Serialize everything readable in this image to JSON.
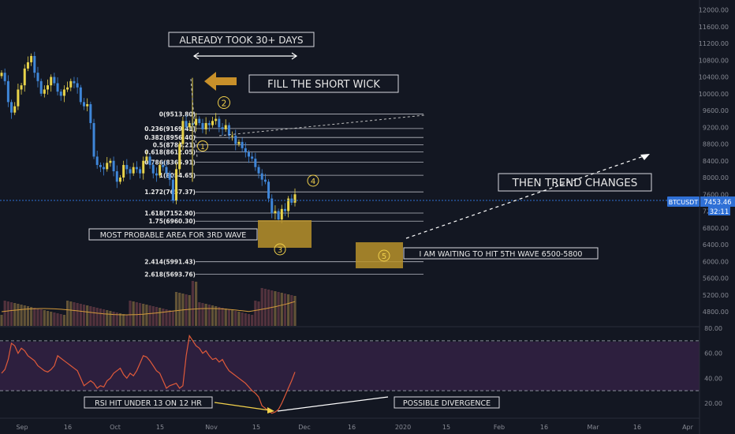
{
  "chart_data": {
    "type": "candlestick",
    "symbol": "BTCUSDT",
    "last_price": "7453.46",
    "countdown": "32:11",
    "x_ticks": [
      "Sep",
      "16",
      "Oct",
      "15",
      "Nov",
      "15",
      "Dec",
      "16",
      "2020",
      "15",
      "Feb",
      "16",
      "Mar",
      "16",
      "Apr"
    ],
    "price_axis": {
      "range": [
        4600,
        12200
      ],
      "ticks": [
        "12000.00",
        "11600.00",
        "11200.00",
        "10800.00",
        "10400.00",
        "10000.00",
        "9600.00",
        "9200.00",
        "8800.00",
        "8400.00",
        "8000.00",
        "7600.00",
        "7200.00",
        "6800.00",
        "6400.00",
        "6000.00",
        "5600.00",
        "5200.00",
        "4800.00"
      ]
    },
    "rsi_axis": {
      "range": [
        10,
        80
      ],
      "ticks": [
        "80.00",
        "60.00",
        "40.00",
        "20.00"
      ],
      "upper_band": 70,
      "lower_band": 30
    },
    "fib_levels": [
      {
        "label": "0(9513.80)",
        "price": 9513.8
      },
      {
        "label": "0.236(9169.41)",
        "price": 9169.41
      },
      {
        "label": "0.382(8956.40)",
        "price": 8956.4
      },
      {
        "label": "0.5(8784.21)",
        "price": 8784.21
      },
      {
        "label": "0.618(8612.05)",
        "price": 8612.05
      },
      {
        "label": "0.786(8366.91)",
        "price": 8366.91
      },
      {
        "label": "1(8054.65)",
        "price": 8054.65
      },
      {
        "label": "1.272(7657.37)",
        "price": 7657.37
      },
      {
        "label": "1.618(7152.90)",
        "price": 7152.9
      },
      {
        "label": "1.75(6960.30)",
        "price": 6960.3
      },
      {
        "label": "2.414(5991.43)",
        "price": 5991.43
      },
      {
        "label": "2.618(5693.76)",
        "price": 5693.76
      }
    ],
    "close_series": [
      10500,
      10300,
      9800,
      9550,
      9700,
      10100,
      10200,
      10600,
      10750,
      10900,
      10500,
      10300,
      10000,
      10100,
      10200,
      10400,
      10250,
      10050,
      9950,
      10100,
      10150,
      10300,
      10250,
      10150,
      9800,
      9700,
      9750,
      9300,
      8500,
      8300,
      8250,
      8200,
      8350,
      8400,
      8150,
      7900,
      8000,
      8300,
      8200,
      8100,
      8250,
      8200,
      8100,
      8400,
      8500,
      8300,
      8100,
      8050,
      8300,
      8250,
      8100,
      7950,
      7450,
      8200,
      8800,
      9350,
      9200,
      9300,
      9250,
      9400,
      9300,
      9150,
      9300,
      9250,
      9350,
      9400,
      9200,
      9150,
      9250,
      9000,
      9000,
      8800,
      8850,
      8700,
      8600,
      8500,
      8450,
      8250,
      8100,
      7950,
      7900,
      7500,
      7150,
      7200,
      7000,
      7250,
      7200,
      7500,
      7400,
      7600
    ],
    "rsi_series": [
      44,
      47,
      55,
      68,
      66,
      60,
      64,
      62,
      58,
      56,
      54,
      50,
      48,
      46,
      45,
      47,
      50,
      58,
      56,
      54,
      52,
      50,
      48,
      46,
      40,
      34,
      36,
      38,
      36,
      32,
      34,
      33,
      38,
      40,
      44,
      46,
      48,
      43,
      40,
      44,
      42,
      46,
      52,
      58,
      57,
      54,
      50,
      46,
      44,
      38,
      32,
      34,
      35,
      36,
      32,
      34,
      58,
      74,
      70,
      66,
      64,
      60,
      62,
      58,
      55,
      56,
      53,
      55,
      50,
      46,
      44,
      42,
      40,
      38,
      36,
      33,
      30,
      28,
      25,
      18,
      16,
      14,
      12,
      13,
      15,
      20,
      26,
      32,
      38,
      45
    ]
  },
  "annotations": {
    "already_took": "ALREADY TOOK 30+ DAYS",
    "fill_short_wick": "FILL THE SHORT WICK",
    "then_trend_changes": "THEN TREND CHANGES",
    "most_probable_area": "MOST PROBABLE AREA FOR 3RD WAVE",
    "waiting_5th_wave": "I AM WAITING TO HIT 5TH WAVE 6500-5800",
    "rsi_hit": "RSI HIT UNDER 13 ON 12 HR",
    "possible_divergence": "POSSIBLE DIVERGENCE"
  },
  "waves": [
    "1",
    "2",
    "3",
    "4",
    "5"
  ],
  "colors": {
    "background": "#131722",
    "up": "#e8d34a",
    "down": "#3f86d8",
    "fib_line": "#b7bac3",
    "rsi_line": "#e05a3a",
    "rsi_band_fill": "#2d1f3e",
    "target_box": "#b8922a",
    "arrow": "#c8902a",
    "price_badge": "#2f70d6"
  }
}
